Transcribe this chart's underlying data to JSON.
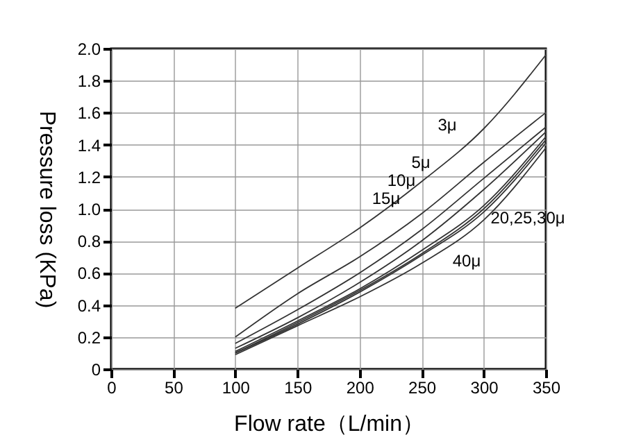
{
  "chart_data": {
    "type": "line",
    "xlabel": "Flow rate（L/min）",
    "ylabel": "Pressure loss (KPa)",
    "x": [
      100,
      150,
      200,
      250,
      300,
      350
    ],
    "series": [
      {
        "color": "#333333",
        "values": [
          0.38,
          0.63,
          0.88,
          1.17,
          1.5,
          1.96
        ]
      },
      {
        "color": "#333333",
        "values": [
          0.2,
          0.47,
          0.7,
          0.97,
          1.29,
          1.6
        ]
      },
      {
        "color": "#333333",
        "values": [
          0.16,
          0.37,
          0.6,
          0.87,
          1.19,
          1.51
        ]
      },
      {
        "color": "#333333",
        "values": [
          0.13,
          0.32,
          0.54,
          0.8,
          1.12,
          1.48
        ]
      },
      {
        "color": "#333333",
        "values": [
          0.11,
          0.3,
          0.5,
          0.74,
          1.02,
          1.45
        ]
      },
      {
        "color": "#333333",
        "values": [
          0.1,
          0.29,
          0.49,
          0.72,
          1.0,
          1.43
        ]
      },
      {
        "color": "#333333",
        "values": [
          0.1,
          0.28,
          0.48,
          0.71,
          0.98,
          1.41
        ]
      },
      {
        "color": "#333333",
        "values": [
          0.09,
          0.27,
          0.45,
          0.66,
          0.93,
          1.38
        ]
      }
    ],
    "annotations": [
      "3μ",
      "5μ",
      "10μ",
      "15μ",
      "20,25,30μ",
      "40μ"
    ],
    "xlim": [
      0,
      350
    ],
    "xticks": [
      0,
      50,
      100,
      150,
      200,
      250,
      300,
      350
    ],
    "ylim": [
      0,
      2.0
    ],
    "yticks": [
      {
        "value": 0,
        "label": "0"
      },
      0.2,
      0.4,
      0.6,
      0.8,
      {
        "value": 1.0,
        "label": "1.0"
      },
      1.2,
      1.4,
      1.6,
      1.8,
      {
        "value": 2.0,
        "label": "2.0"
      }
    ],
    "grid": true,
    "legend": false,
    "marker": "none",
    "line_style": "solid"
  }
}
